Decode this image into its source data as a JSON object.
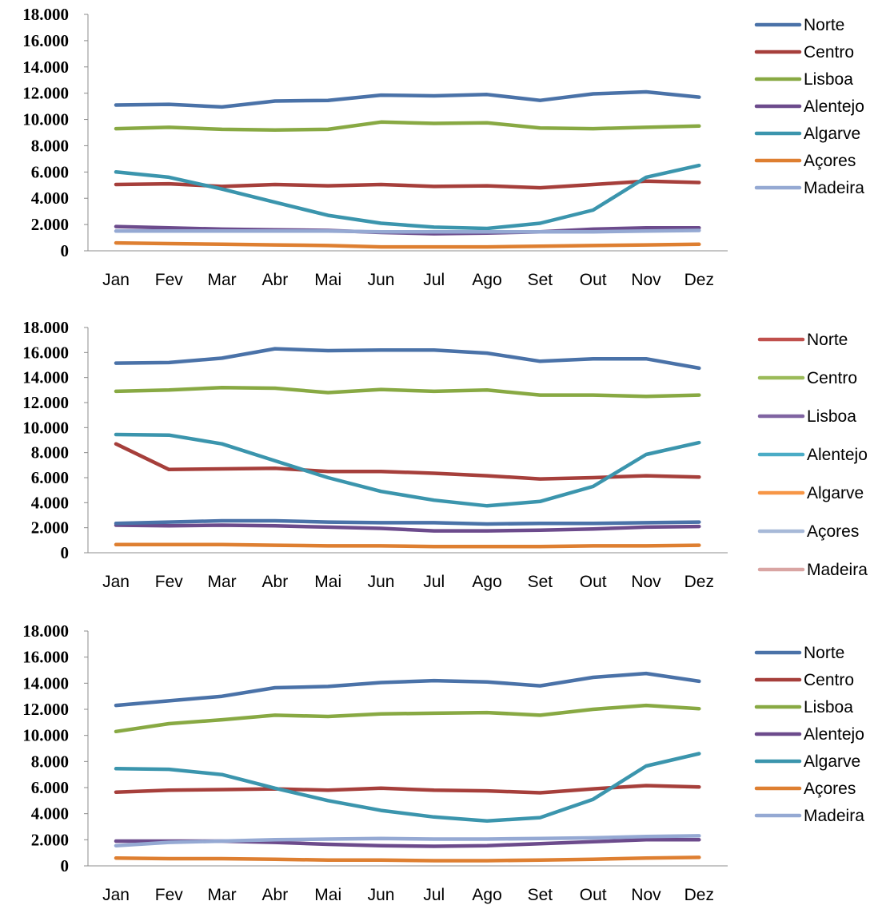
{
  "chart_data": [
    {
      "type": "line",
      "categories": [
        "Jan",
        "Fev",
        "Mar",
        "Abr",
        "Mai",
        "Jun",
        "Jul",
        "Ago",
        "Set",
        "Out",
        "Nov",
        "Dez"
      ],
      "ylim": [
        0,
        18000
      ],
      "yticks": [
        0,
        2000,
        4000,
        6000,
        8000,
        10000,
        12000,
        14000,
        16000,
        18000
      ],
      "ytick_labels": [
        "0",
        "2.000",
        "4.000",
        "6.000",
        "8.000",
        "10.000",
        "12.000",
        "14.000",
        "16.000",
        "18.000"
      ],
      "legend_position": "right",
      "series": [
        {
          "name": "Norte",
          "color": "#4a72a8",
          "values": [
            11100,
            11150,
            10950,
            11400,
            11450,
            11850,
            11800,
            11900,
            11450,
            11950,
            12100,
            11700
          ]
        },
        {
          "name": "Centro",
          "color": "#a63f3b",
          "values": [
            5050,
            5100,
            4900,
            5050,
            4950,
            5050,
            4900,
            4950,
            4800,
            5050,
            5300,
            5200
          ]
        },
        {
          "name": "Lisboa",
          "color": "#88a943",
          "values": [
            9300,
            9400,
            9250,
            9200,
            9250,
            9800,
            9700,
            9750,
            9350,
            9300,
            9400,
            9500
          ]
        },
        {
          "name": "Alentejo",
          "color": "#6c4b8c",
          "values": [
            1850,
            1750,
            1650,
            1600,
            1550,
            1400,
            1300,
            1350,
            1450,
            1650,
            1750,
            1750
          ]
        },
        {
          "name": "Algarve",
          "color": "#3b95ad",
          "values": [
            6000,
            5600,
            4700,
            3700,
            2700,
            2100,
            1800,
            1700,
            2100,
            3100,
            5600,
            6500
          ]
        },
        {
          "name": "Açores",
          "color": "#de7f31",
          "values": [
            600,
            550,
            500,
            450,
            400,
            300,
            300,
            300,
            350,
            400,
            450,
            500
          ]
        },
        {
          "name": "Madeira",
          "color": "#95a9d3",
          "values": [
            1500,
            1500,
            1500,
            1500,
            1500,
            1450,
            1450,
            1450,
            1450,
            1450,
            1500,
            1550
          ]
        }
      ]
    },
    {
      "type": "line",
      "categories": [
        "Jan",
        "Fev",
        "Mar",
        "Abr",
        "Mai",
        "Jun",
        "Jul",
        "Ago",
        "Set",
        "Out",
        "Nov",
        "Dez"
      ],
      "ylim": [
        0,
        18000
      ],
      "yticks": [
        0,
        2000,
        4000,
        6000,
        8000,
        10000,
        12000,
        14000,
        16000,
        18000
      ],
      "ytick_labels": [
        "0",
        "2.000",
        "4.000",
        "6.000",
        "8.000",
        "10.000",
        "12.000",
        "14.000",
        "16.000",
        "18.000"
      ],
      "legend_position": "right",
      "legend": [
        {
          "name": "Norte",
          "color": "#c0504d"
        },
        {
          "name": "Centro",
          "color": "#9bbb59"
        },
        {
          "name": "Lisboa",
          "color": "#8064a2"
        },
        {
          "name": "Alentejo",
          "color": "#4bacc6"
        },
        {
          "name": "Algarve",
          "color": "#f79646"
        },
        {
          "name": "Açores",
          "color": "#a7b9d8"
        },
        {
          "name": "Madeira",
          "color": "#d9a5a3"
        }
      ],
      "series": [
        {
          "color": "#4a72a8",
          "values": [
            15150,
            15200,
            15550,
            16300,
            16150,
            16200,
            16200,
            15950,
            15300,
            15500,
            15500,
            14750
          ]
        },
        {
          "color": "#a63f3b",
          "values": [
            8700,
            6650,
            6700,
            6750,
            6500,
            6500,
            6350,
            6150,
            5900,
            6000,
            6150,
            6050
          ]
        },
        {
          "color": "#88a943",
          "values": [
            12900,
            13000,
            13200,
            13150,
            12800,
            13050,
            12900,
            13000,
            12600,
            12600,
            12500,
            12600
          ]
        },
        {
          "color": "#6c4b8c",
          "values": [
            2200,
            2150,
            2200,
            2150,
            2050,
            1950,
            1750,
            1750,
            1800,
            1900,
            2050,
            2100
          ]
        },
        {
          "color": "#3b95ad",
          "values": [
            9450,
            9400,
            8700,
            7350,
            6000,
            4900,
            4200,
            3750,
            4100,
            5300,
            7850,
            8800
          ]
        },
        {
          "color": "#de7f31",
          "values": [
            650,
            650,
            650,
            600,
            550,
            550,
            500,
            500,
            500,
            550,
            550,
            600
          ]
        },
        {
          "color": "#4a72a8",
          "values": [
            2350,
            2450,
            2550,
            2550,
            2450,
            2400,
            2400,
            2300,
            2350,
            2350,
            2400,
            2450
          ]
        }
      ]
    },
    {
      "type": "line",
      "categories": [
        "Jan",
        "Fev",
        "Mar",
        "Abr",
        "Mai",
        "Jun",
        "Jul",
        "Ago",
        "Set",
        "Out",
        "Nov",
        "Dez"
      ],
      "ylim": [
        0,
        18000
      ],
      "yticks": [
        0,
        2000,
        4000,
        6000,
        8000,
        10000,
        12000,
        14000,
        16000,
        18000
      ],
      "ytick_labels": [
        "0",
        "2.000",
        "4.000",
        "6.000",
        "8.000",
        "10.000",
        "12.000",
        "14.000",
        "16.000",
        "18.000"
      ],
      "legend_position": "right",
      "series": [
        {
          "name": "Norte",
          "color": "#4a72a8",
          "values": [
            12300,
            12650,
            13000,
            13650,
            13750,
            14050,
            14200,
            14100,
            13800,
            14450,
            14750,
            14150
          ]
        },
        {
          "name": "Centro",
          "color": "#a63f3b",
          "values": [
            5650,
            5800,
            5850,
            5900,
            5800,
            5950,
            5800,
            5750,
            5600,
            5900,
            6150,
            6050
          ]
        },
        {
          "name": "Lisboa",
          "color": "#88a943",
          "values": [
            10300,
            10900,
            11200,
            11550,
            11450,
            11650,
            11700,
            11750,
            11550,
            12000,
            12300,
            12050
          ]
        },
        {
          "name": "Alentejo",
          "color": "#6c4b8c",
          "values": [
            1900,
            1900,
            1900,
            1800,
            1650,
            1550,
            1500,
            1550,
            1700,
            1850,
            2000,
            2000
          ]
        },
        {
          "name": "Algarve",
          "color": "#3b95ad",
          "values": [
            7450,
            7400,
            7000,
            5950,
            5000,
            4250,
            3750,
            3450,
            3700,
            5100,
            7650,
            8600
          ]
        },
        {
          "name": "Açores",
          "color": "#de7f31",
          "values": [
            600,
            550,
            550,
            500,
            450,
            450,
            400,
            400,
            450,
            500,
            600,
            650
          ]
        },
        {
          "name": "Madeira",
          "color": "#95a9d3",
          "values": [
            1550,
            1800,
            1900,
            2000,
            2050,
            2100,
            2050,
            2050,
            2100,
            2150,
            2250,
            2300
          ]
        }
      ]
    }
  ]
}
